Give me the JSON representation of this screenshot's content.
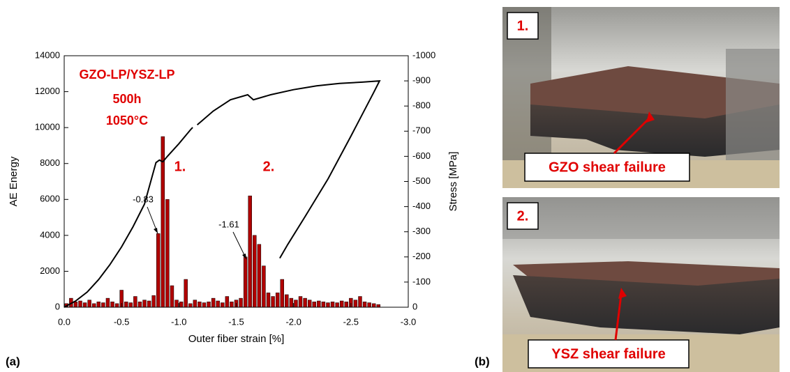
{
  "chart_data": {
    "type": "combo",
    "xlabel": "Outer fiber strain [%]",
    "ylabel": "AE Energy",
    "y2label": "Stress [MPa]",
    "texts": [
      "GZO-LP/YSZ-LP",
      "500h",
      "1050°C"
    ],
    "peak_labels": [
      "1.",
      "2."
    ],
    "annotations": [
      "-0.83",
      "-1.61"
    ],
    "xlim": [
      0,
      -3
    ],
    "xticks": [
      {
        "value": 0,
        "label": "0.0"
      },
      {
        "value": -0.5,
        "label": "-0.5"
      },
      {
        "value": -1,
        "label": "-1.0"
      },
      {
        "value": -1.5,
        "label": "-1.5"
      },
      {
        "value": -2,
        "label": "-2.0"
      },
      {
        "value": -2.5,
        "label": "-2.5"
      },
      {
        "value": -3,
        "label": "-3.0"
      }
    ],
    "ylim": [
      0,
      14000
    ],
    "yticks": [
      0,
      2000,
      4000,
      6000,
      8000,
      10000,
      12000,
      14000
    ],
    "y2lim": [
      0,
      -1000
    ],
    "y2ticks": [
      0,
      -100,
      -200,
      -300,
      -400,
      -500,
      -600,
      -700,
      -800,
      -900,
      -1000
    ],
    "series": [
      {
        "type": "bar",
        "color": "#b00000",
        "x": [
          -0.02,
          -0.06,
          -0.1,
          -0.14,
          -0.18,
          -0.22,
          -0.26,
          -0.3,
          -0.34,
          -0.38,
          -0.42,
          -0.46,
          -0.5,
          -0.54,
          -0.58,
          -0.62,
          -0.66,
          -0.7,
          -0.74,
          -0.78,
          -0.82,
          -0.86,
          -0.9,
          -0.94,
          -0.98,
          -1.02,
          -1.06,
          -1.1,
          -1.14,
          -1.18,
          -1.22,
          -1.26,
          -1.3,
          -1.34,
          -1.38,
          -1.42,
          -1.46,
          -1.5,
          -1.54,
          -1.58,
          -1.62,
          -1.66,
          -1.7,
          -1.74,
          -1.78,
          -1.82,
          -1.86,
          -1.9,
          -1.94,
          -1.98,
          -2.02,
          -2.06,
          -2.1,
          -2.14,
          -2.18,
          -2.22,
          -2.26,
          -2.3,
          -2.34,
          -2.38,
          -2.42,
          -2.46,
          -2.5,
          -2.54,
          -2.58,
          -2.62,
          -2.66,
          -2.7,
          -2.74
        ],
        "values": [
          200,
          500,
          300,
          350,
          250,
          400,
          200,
          300,
          250,
          500,
          300,
          200,
          950,
          300,
          250,
          600,
          300,
          400,
          350,
          650,
          4100,
          9500,
          6000,
          1200,
          400,
          300,
          1550,
          200,
          400,
          300,
          250,
          300,
          500,
          350,
          250,
          600,
          300,
          400,
          500,
          2800,
          6200,
          4000,
          3500,
          2300,
          800,
          600,
          800,
          1550,
          700,
          500,
          400,
          600,
          500,
          400,
          300,
          350,
          300,
          250,
          300,
          250,
          350,
          300,
          500,
          400,
          600,
          300,
          250,
          200,
          150
        ]
      },
      {
        "type": "line",
        "color": "#000000",
        "axis": "y2",
        "x": [
          0,
          -0.1,
          -0.2,
          -0.3,
          -0.4,
          -0.5,
          -0.6,
          -0.7,
          -0.8,
          -0.83,
          -0.86,
          -0.9,
          -1.0,
          -1.1,
          -1.12,
          -1.14,
          -1.16,
          -1.3,
          -1.45,
          -1.6,
          -1.65,
          -1.8,
          -2.0,
          -2.2,
          -2.4,
          -2.6,
          -2.75,
          -2.7,
          -2.5,
          -2.3,
          -2.1,
          -1.95,
          -1.88
        ],
        "values": [
          0,
          -25,
          -60,
          -110,
          -170,
          -240,
          -320,
          -410,
          -575,
          -585,
          -578,
          -600,
          -650,
          -705,
          -715,
          null,
          -725,
          -780,
          -825,
          -845,
          -825,
          -845,
          -865,
          -880,
          -890,
          -895,
          -900,
          -855,
          -680,
          -510,
          -360,
          -250,
          -195
        ]
      }
    ]
  },
  "panels": {
    "a_label": "(a)",
    "b_label": "(b)",
    "photos": [
      {
        "label": "1.",
        "caption": "GZO shear failure"
      },
      {
        "label": "2.",
        "caption": "YSZ shear failure"
      }
    ]
  }
}
